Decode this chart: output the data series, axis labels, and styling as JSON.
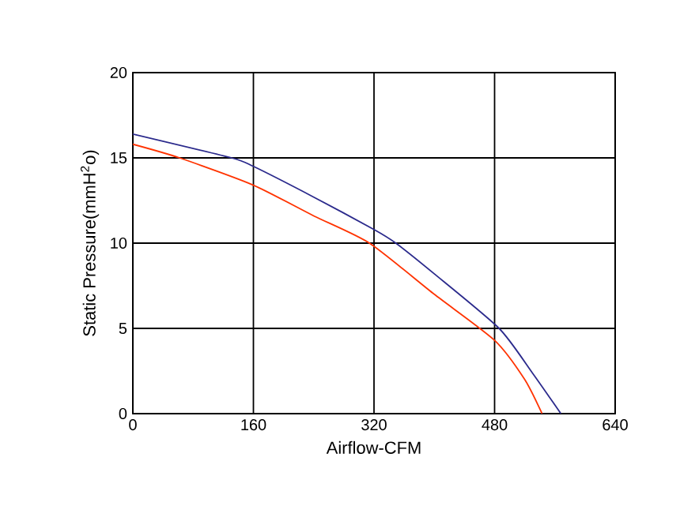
{
  "chart_data": {
    "type": "line",
    "xlabel": "Airflow-CFM",
    "ylabel": "Static Pressure(mmH$^{2}$o)",
    "xlim": [
      0,
      640
    ],
    "ylim": [
      0,
      20
    ],
    "xticks": [
      0,
      160,
      320,
      480,
      640
    ],
    "yticks": [
      0,
      5,
      10,
      15,
      20
    ],
    "grid": true,
    "marker": "none",
    "series": [
      {
        "color": "#2b2a8c",
        "x": [
          0,
          131,
          160,
          240,
          320,
          349,
          400,
          486,
          530,
          568
        ],
        "values": [
          16.4,
          15,
          14.5,
          12.7,
          10.8,
          10,
          8.2,
          5,
          2.4,
          0
        ]
      },
      {
        "color": "#ff3300",
        "x": [
          0,
          62,
          160,
          240,
          314,
          400,
          480,
          520,
          543
        ],
        "values": [
          15.8,
          15,
          13.4,
          11.6,
          10,
          7,
          4.3,
          2,
          0
        ]
      }
    ]
  }
}
